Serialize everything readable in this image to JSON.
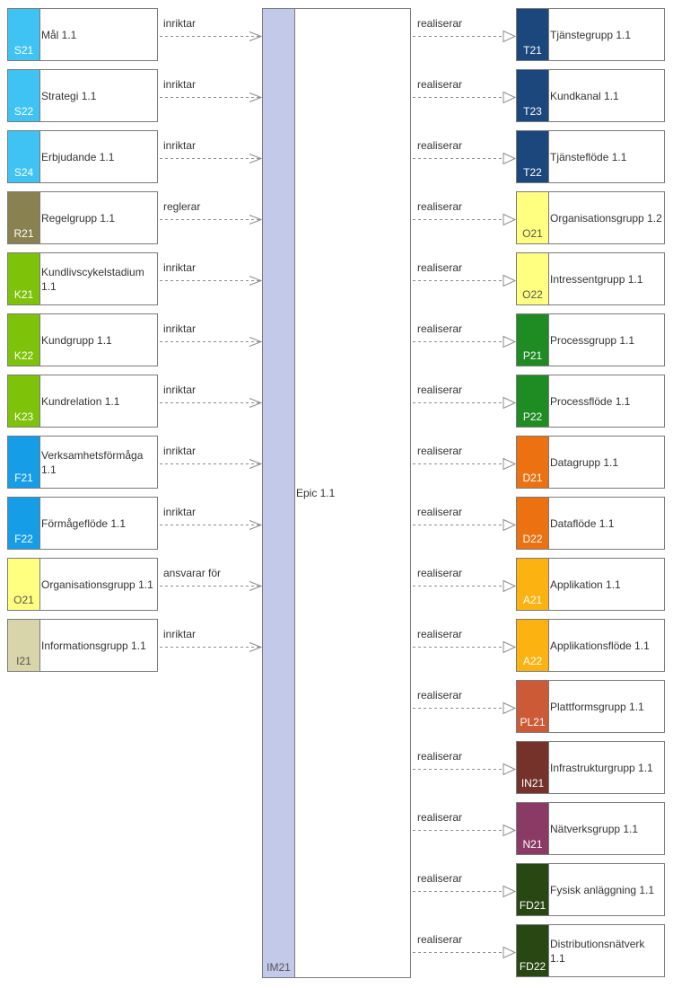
{
  "center": {
    "code": "IM21",
    "name": "Epic 1.1",
    "color": "#c3c9e9"
  },
  "left": [
    {
      "code": "S21",
      "name": "Mål 1.1",
      "edge": "inriktar",
      "color": "#3ec3f2",
      "code_color": "#ffffff"
    },
    {
      "code": "S22",
      "name": "Strategi 1.1",
      "edge": "inriktar",
      "color": "#3ec3f2",
      "code_color": "#ffffff"
    },
    {
      "code": "S24",
      "name": "Erbjudande 1.1",
      "edge": "inriktar",
      "color": "#3ec3f2",
      "code_color": "#ffffff"
    },
    {
      "code": "R21",
      "name": "Regelgrupp 1.1",
      "edge": "reglerar",
      "color": "#8a8150",
      "code_color": "#ffffff"
    },
    {
      "code": "K21",
      "name": "Kundlivscykelstadium 1.1",
      "edge": "inriktar",
      "color": "#7ec20a",
      "code_color": "#ffffff"
    },
    {
      "code": "K22",
      "name": "Kundgrupp 1.1",
      "edge": "inriktar",
      "color": "#7ec20a",
      "code_color": "#ffffff"
    },
    {
      "code": "K23",
      "name": "Kundrelation 1.1",
      "edge": "inriktar",
      "color": "#7ec20a",
      "code_color": "#ffffff"
    },
    {
      "code": "F21",
      "name": "Verksamhetsförmåga 1.1",
      "edge": "inriktar",
      "color": "#159de8",
      "code_color": "#ffffff"
    },
    {
      "code": "F22",
      "name": "Förmågeflöde 1.1",
      "edge": "inriktar",
      "color": "#159de8",
      "code_color": "#ffffff"
    },
    {
      "code": "O21",
      "name": "Organisationsgrupp 1.1",
      "edge": "ansvarar för",
      "color": "#ffff80",
      "code_color": "#555555"
    },
    {
      "code": "I21",
      "name": "Informationsgrupp 1.1",
      "edge": "inriktar",
      "color": "#d7d5a9",
      "code_color": "#555555"
    }
  ],
  "right": [
    {
      "code": "T21",
      "name": "Tjänstegrupp 1.1",
      "edge": "realiserar",
      "color": "#1b477c",
      "code_color": "#ffffff"
    },
    {
      "code": "T23",
      "name": "Kundkanal 1.1",
      "edge": "realiserar",
      "color": "#1b477c",
      "code_color": "#ffffff"
    },
    {
      "code": "T22",
      "name": "Tjänsteflöde 1.1",
      "edge": "realiserar",
      "color": "#1b477c",
      "code_color": "#ffffff"
    },
    {
      "code": "O21",
      "name": "Organisationsgrupp 1.2",
      "edge": "realiserar",
      "color": "#ffff80",
      "code_color": "#555555"
    },
    {
      "code": "O22",
      "name": "Intressentgrupp 1.1",
      "edge": "realiserar",
      "color": "#ffff80",
      "code_color": "#555555"
    },
    {
      "code": "P21",
      "name": "Processgrupp 1.1",
      "edge": "realiserar",
      "color": "#1e8c22",
      "code_color": "#ffffff"
    },
    {
      "code": "P22",
      "name": "Processflöde 1.1",
      "edge": "realiserar",
      "color": "#1e8c22",
      "code_color": "#ffffff"
    },
    {
      "code": "D21",
      "name": "Datagrupp 1.1",
      "edge": "realiserar",
      "color": "#ec7211",
      "code_color": "#ffffff"
    },
    {
      "code": "D22",
      "name": "Dataflöde 1.1",
      "edge": "realiserar",
      "color": "#ec7211",
      "code_color": "#ffffff"
    },
    {
      "code": "A21",
      "name": "Applikation 1.1",
      "edge": "realiserar",
      "color": "#fcb311",
      "code_color": "#ffffff"
    },
    {
      "code": "A22",
      "name": "Applikationsflöde 1.1",
      "edge": "realiserar",
      "color": "#fcb311",
      "code_color": "#ffffff"
    },
    {
      "code": "PL21",
      "name": "Plattformsgrupp 1.1",
      "edge": "realiserar",
      "color": "#cc5a36",
      "code_color": "#ffffff"
    },
    {
      "code": "IN21",
      "name": "Infrastrukturgrupp 1.1",
      "edge": "realiserar",
      "color": "#74322b",
      "code_color": "#ffffff"
    },
    {
      "code": "N21",
      "name": "Nätverksgrupp 1.1",
      "edge": "realiserar",
      "color": "#8b3a65",
      "code_color": "#ffffff"
    },
    {
      "code": "FD21",
      "name": "Fysisk anläggning 1.1",
      "edge": "realiserar",
      "color": "#284712",
      "code_color": "#ffffff"
    },
    {
      "code": "FD22",
      "name": "Distributionsnätverk 1.1",
      "edge": "realiserar",
      "color": "#284712",
      "code_color": "#ffffff"
    }
  ]
}
